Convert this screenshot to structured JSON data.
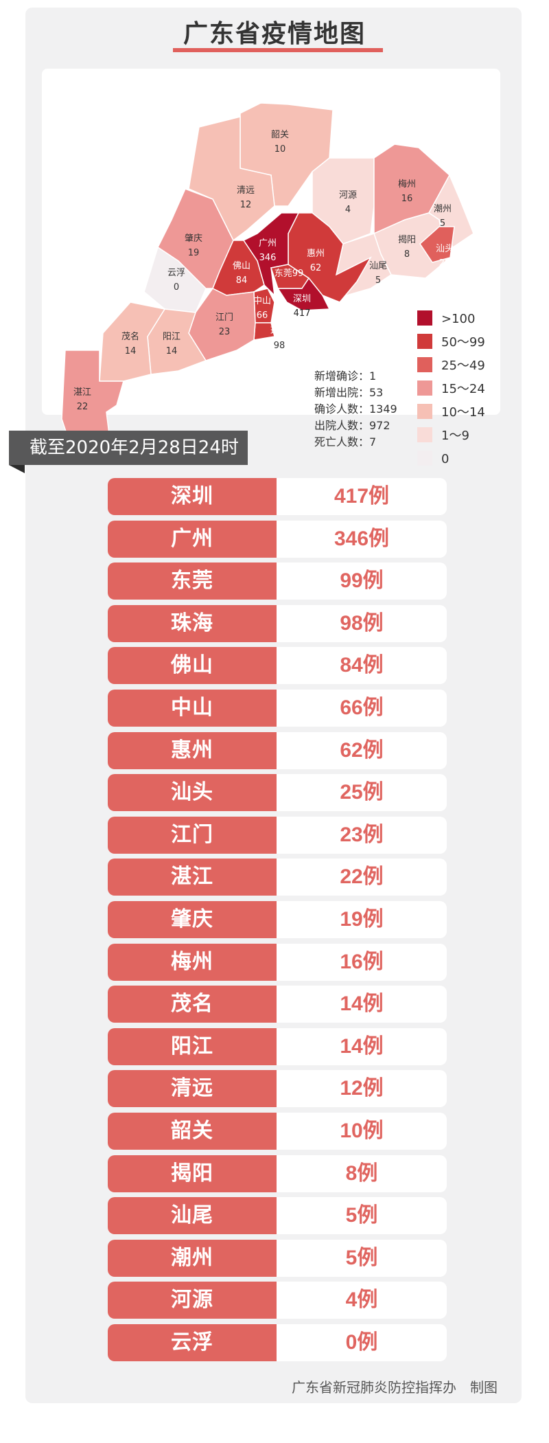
{
  "title": "广东省疫情地图",
  "colors": {
    "gt100": "#b2102c",
    "r50_99": "#d03a3a",
    "r25_49": "#e0605c",
    "r15_24": "#ee9896",
    "r10_14": "#f6c0b5",
    "r1_9": "#f9dcd8",
    "r0": "#f3eef0",
    "accent": "#e06560"
  },
  "map": {
    "regions": [
      {
        "name": "韶关",
        "value": "10",
        "level": "r10_14"
      },
      {
        "name": "清远",
        "value": "12",
        "level": "r10_14"
      },
      {
        "name": "肇庆",
        "value": "19",
        "level": "r15_24"
      },
      {
        "name": "云浮",
        "value": "0",
        "level": "r0"
      },
      {
        "name": "河源",
        "value": "4",
        "level": "r1_9"
      },
      {
        "name": "梅州",
        "value": "16",
        "level": "r15_24"
      },
      {
        "name": "潮州",
        "value": "5",
        "level": "r1_9"
      },
      {
        "name": "揭阳",
        "value": "8",
        "level": "r1_9"
      },
      {
        "name": "汕头",
        "value": "25",
        "level": "r25_49"
      },
      {
        "name": "汕尾",
        "value": "5",
        "level": "r1_9"
      },
      {
        "name": "惠州",
        "value": "62",
        "level": "r50_99"
      },
      {
        "name": "广州",
        "value": "346",
        "level": "gt100"
      },
      {
        "name": "东莞",
        "value": "99",
        "level": "r50_99"
      },
      {
        "name": "深圳",
        "value": "417",
        "level": "gt100"
      },
      {
        "name": "佛山",
        "value": "84",
        "level": "r50_99"
      },
      {
        "name": "中山",
        "value": "66",
        "level": "r50_99"
      },
      {
        "name": "珠海",
        "value": "98",
        "level": "r50_99"
      },
      {
        "name": "江门",
        "value": "23",
        "level": "r15_24"
      },
      {
        "name": "阳江",
        "value": "14",
        "level": "r10_14"
      },
      {
        "name": "茂名",
        "value": "14",
        "level": "r10_14"
      },
      {
        "name": "湛江",
        "value": "22",
        "level": "r15_24"
      }
    ],
    "legend": [
      {
        "label": ">100",
        "level": "gt100"
      },
      {
        "label": "50～99",
        "level": "r50_99"
      },
      {
        "label": "25～49",
        "level": "r25_49"
      },
      {
        "label": "15～24",
        "level": "r15_24"
      },
      {
        "label": "10～14",
        "level": "r10_14"
      },
      {
        "label": "1～9",
        "level": "r1_9"
      },
      {
        "label": "0",
        "level": "r0"
      }
    ],
    "stats": [
      {
        "label": "新增确诊",
        "value": "1"
      },
      {
        "label": "新增出院",
        "value": "53"
      },
      {
        "label": "确诊人数",
        "value": "1349"
      },
      {
        "label": "出院人数",
        "value": "972"
      },
      {
        "label": "死亡人数",
        "value": "7"
      }
    ]
  },
  "date_banner": "截至2020年2月28日24时",
  "table": [
    {
      "city": "深圳",
      "count": "417例"
    },
    {
      "city": "广州",
      "count": "346例"
    },
    {
      "city": "东莞",
      "count": "99例"
    },
    {
      "city": "珠海",
      "count": "98例"
    },
    {
      "city": "佛山",
      "count": "84例"
    },
    {
      "city": "中山",
      "count": "66例"
    },
    {
      "city": "惠州",
      "count": "62例"
    },
    {
      "city": "汕头",
      "count": "25例"
    },
    {
      "city": "江门",
      "count": "23例"
    },
    {
      "city": "湛江",
      "count": "22例"
    },
    {
      "city": "肇庆",
      "count": "19例"
    },
    {
      "city": "梅州",
      "count": "16例"
    },
    {
      "city": "茂名",
      "count": "14例"
    },
    {
      "city": "阳江",
      "count": "14例"
    },
    {
      "city": "清远",
      "count": "12例"
    },
    {
      "city": "韶关",
      "count": "10例"
    },
    {
      "city": "揭阳",
      "count": "8例"
    },
    {
      "city": "汕尾",
      "count": "5例"
    },
    {
      "city": "潮州",
      "count": "5例"
    },
    {
      "city": "河源",
      "count": "4例"
    },
    {
      "city": "云浮",
      "count": "0例"
    }
  ],
  "footer": {
    "org": "广东省新冠肺炎防控指挥办",
    "suffix": "制图"
  }
}
